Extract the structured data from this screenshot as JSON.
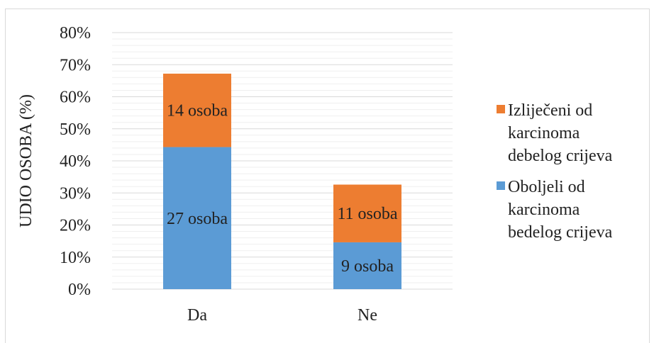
{
  "chart_data": {
    "type": "bar",
    "stacked": true,
    "title": "",
    "xlabel": "",
    "ylabel": "UDIO OSOBA (%)",
    "ylim": [
      0,
      80
    ],
    "y_tick_labels": [
      "0%",
      "10%",
      "20%",
      "30%",
      "40%",
      "50%",
      "60%",
      "70%",
      "80%"
    ],
    "categories": [
      "Da",
      "Ne"
    ],
    "grid": true,
    "legend_position": "right",
    "series": [
      {
        "name": "Oboljeli od karcinoma bedelog crijeva",
        "color": "#5b9bd5",
        "values": [
          44.3,
          14.6
        ],
        "labels": [
          "27 osoba",
          "9 osoba"
        ]
      },
      {
        "name": "Izliječeni od karcinoma debelog crijeva",
        "color": "#ed7d31",
        "values": [
          22.9,
          18.0
        ],
        "labels": [
          "14 osoba",
          "11 osoba"
        ]
      }
    ],
    "legend": [
      {
        "lines": [
          "Izliječeni od",
          "karcinoma",
          "debelog crijeva"
        ],
        "color": "#ed7d31"
      },
      {
        "lines": [
          "Oboljeli od",
          "karcinoma",
          "bedelog crijeva"
        ],
        "color": "#5b9bd5"
      }
    ]
  }
}
